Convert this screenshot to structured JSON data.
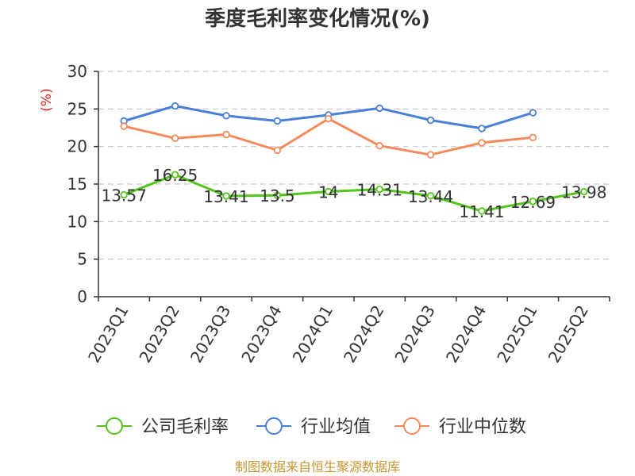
{
  "chart_data": {
    "type": "line",
    "title": "季度毛利率变化情况(%)",
    "ylabel": "(%)",
    "xlabel": "",
    "categories": [
      "2023Q1",
      "2023Q2",
      "2023Q3",
      "2023Q4",
      "2024Q1",
      "2024Q2",
      "2024Q3",
      "2024Q4",
      "2025Q1",
      "2025Q2"
    ],
    "ylim": [
      0,
      30
    ],
    "yticks": [
      0,
      5,
      10,
      15,
      20,
      25,
      30
    ],
    "grid": true,
    "legend_position": "bottom",
    "series": [
      {
        "name": "公司毛利率",
        "color": "#52c41a",
        "values": [
          13.57,
          16.25,
          13.41,
          13.5,
          14,
          14.31,
          13.44,
          11.41,
          12.69,
          13.98
        ],
        "labels": [
          "13.57",
          "16.25",
          "13.41",
          "13.5",
          "14",
          "14.31",
          "13.44",
          "11.41",
          "12.69",
          "13.98"
        ]
      },
      {
        "name": "行业均值",
        "color": "#4a7fd8",
        "values": [
          23.4,
          25.4,
          24.1,
          23.4,
          24.2,
          25.1,
          23.5,
          22.4,
          24.5,
          null
        ]
      },
      {
        "name": "行业中位数",
        "color": "#f5895b",
        "values": [
          22.7,
          21.1,
          21.6,
          19.5,
          23.7,
          20.1,
          18.9,
          20.5,
          21.2,
          null
        ]
      }
    ]
  },
  "source": "制图数据来自恒生聚源数据库"
}
